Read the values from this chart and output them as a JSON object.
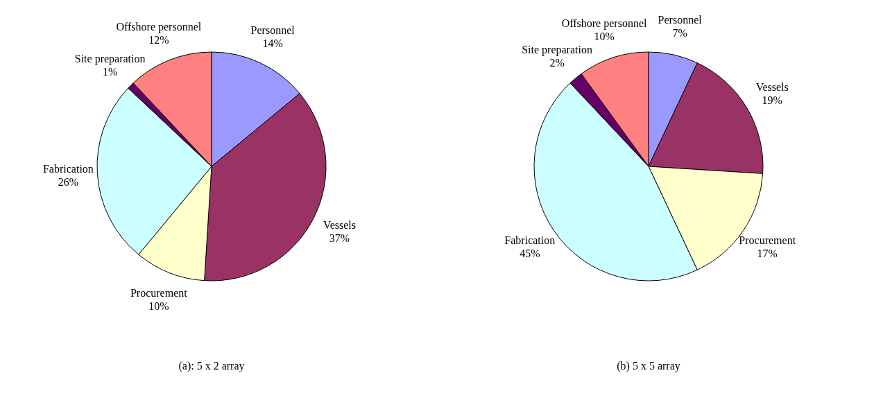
{
  "chart_data": [
    {
      "type": "pie",
      "title": "(a): 5 x 2 array",
      "categories": [
        "Personnel",
        "Vessels",
        "Procurement",
        "Fabrication",
        "Site preparation",
        "Offshore personnel"
      ],
      "values": [
        14,
        37,
        10,
        26,
        1,
        12
      ],
      "value_labels": [
        "14%",
        "37%",
        "10%",
        "26%",
        "1%",
        "12%"
      ],
      "colors": [
        "#9999ff",
        "#993366",
        "#ffffcc",
        "#ccffff",
        "#660066",
        "#ff8080"
      ]
    },
    {
      "type": "pie",
      "title": "(b) 5 x 5 array",
      "categories": [
        "Personnel",
        "Vessels",
        "Procurement",
        "Fabrication",
        "Site preparation",
        "Offshore personnel"
      ],
      "values": [
        7,
        19,
        17,
        45,
        2,
        10
      ],
      "value_labels": [
        "7%",
        "19%",
        "17%",
        "45%",
        "2%",
        "10%"
      ],
      "colors": [
        "#9999ff",
        "#993366",
        "#ffffcc",
        "#ccffff",
        "#660066",
        "#ff8080"
      ]
    }
  ]
}
